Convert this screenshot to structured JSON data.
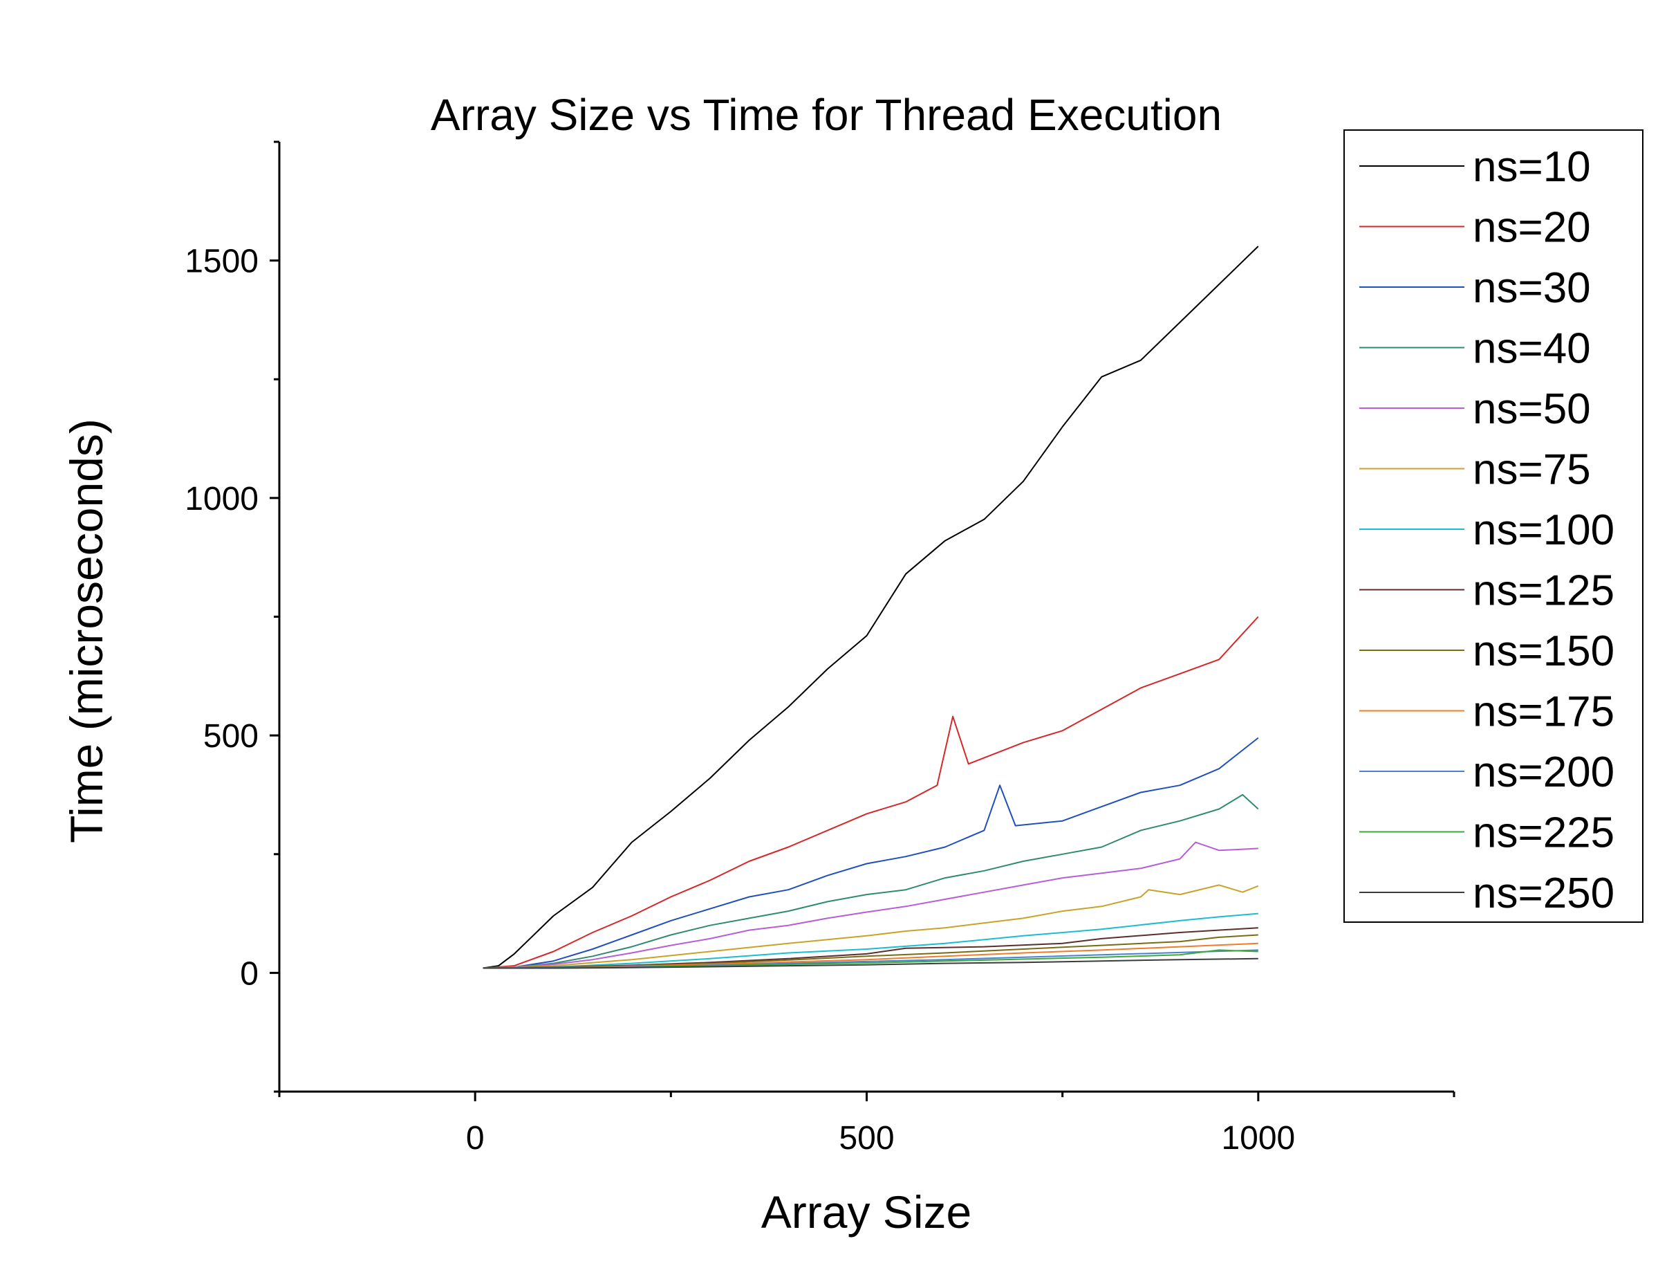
{
  "chart_data": {
    "type": "line",
    "title": "Array Size vs Time for Thread Execution",
    "xlabel": "Array Size",
    "ylabel": "Time (microseconds)",
    "xlim": [
      -250,
      1250
    ],
    "ylim": [
      -250,
      1750
    ],
    "x_ticks": [
      "0",
      "500",
      "1000"
    ],
    "y_ticks": [
      "0",
      "500",
      "1000",
      "1500"
    ],
    "legend_position": "right",
    "grid": false,
    "series": [
      {
        "name": "ns=10",
        "color": "#000000",
        "points": [
          [
            10,
            10
          ],
          [
            30,
            15
          ],
          [
            50,
            40
          ],
          [
            100,
            120
          ],
          [
            150,
            180
          ],
          [
            200,
            275
          ],
          [
            250,
            340
          ],
          [
            300,
            410
          ],
          [
            350,
            490
          ],
          [
            400,
            560
          ],
          [
            450,
            640
          ],
          [
            500,
            710
          ],
          [
            550,
            840
          ],
          [
            600,
            910
          ],
          [
            650,
            955
          ],
          [
            700,
            1035
          ],
          [
            750,
            1150
          ],
          [
            800,
            1255
          ],
          [
            850,
            1290
          ],
          [
            900,
            1370
          ],
          [
            950,
            1450
          ],
          [
            1000,
            1530
          ]
        ]
      },
      {
        "name": "ns=20",
        "color": "#d62728",
        "points": [
          [
            10,
            10
          ],
          [
            50,
            15
          ],
          [
            100,
            45
          ],
          [
            150,
            85
          ],
          [
            200,
            120
          ],
          [
            250,
            160
          ],
          [
            300,
            195
          ],
          [
            350,
            235
          ],
          [
            400,
            265
          ],
          [
            450,
            300
          ],
          [
            500,
            335
          ],
          [
            550,
            360
          ],
          [
            590,
            395
          ],
          [
            610,
            540
          ],
          [
            630,
            440
          ],
          [
            700,
            485
          ],
          [
            750,
            510
          ],
          [
            800,
            555
          ],
          [
            850,
            600
          ],
          [
            900,
            630
          ],
          [
            950,
            660
          ],
          [
            1000,
            750
          ]
        ]
      },
      {
        "name": "ns=30",
        "color": "#1f4fbf",
        "points": [
          [
            10,
            10
          ],
          [
            50,
            12
          ],
          [
            100,
            25
          ],
          [
            150,
            50
          ],
          [
            200,
            80
          ],
          [
            250,
            110
          ],
          [
            300,
            135
          ],
          [
            350,
            160
          ],
          [
            400,
            175
          ],
          [
            450,
            205
          ],
          [
            500,
            230
          ],
          [
            550,
            245
          ],
          [
            600,
            265
          ],
          [
            650,
            300
          ],
          [
            670,
            395
          ],
          [
            690,
            310
          ],
          [
            750,
            320
          ],
          [
            800,
            350
          ],
          [
            850,
            380
          ],
          [
            900,
            395
          ],
          [
            950,
            430
          ],
          [
            1000,
            495
          ]
        ]
      },
      {
        "name": "ns=40",
        "color": "#2e8b6e",
        "points": [
          [
            10,
            10
          ],
          [
            50,
            12
          ],
          [
            100,
            20
          ],
          [
            150,
            35
          ],
          [
            200,
            55
          ],
          [
            250,
            80
          ],
          [
            300,
            100
          ],
          [
            350,
            115
          ],
          [
            400,
            130
          ],
          [
            450,
            150
          ],
          [
            500,
            165
          ],
          [
            550,
            175
          ],
          [
            600,
            200
          ],
          [
            650,
            215
          ],
          [
            700,
            235
          ],
          [
            750,
            250
          ],
          [
            800,
            265
          ],
          [
            850,
            300
          ],
          [
            900,
            320
          ],
          [
            950,
            345
          ],
          [
            980,
            375
          ],
          [
            1000,
            345
          ]
        ]
      },
      {
        "name": "ns=50",
        "color": "#b55ed6",
        "points": [
          [
            10,
            10
          ],
          [
            50,
            12
          ],
          [
            100,
            18
          ],
          [
            150,
            28
          ],
          [
            200,
            42
          ],
          [
            250,
            58
          ],
          [
            300,
            72
          ],
          [
            350,
            90
          ],
          [
            400,
            100
          ],
          [
            450,
            115
          ],
          [
            500,
            128
          ],
          [
            550,
            140
          ],
          [
            600,
            155
          ],
          [
            650,
            170
          ],
          [
            700,
            185
          ],
          [
            750,
            200
          ],
          [
            800,
            210
          ],
          [
            850,
            220
          ],
          [
            900,
            240
          ],
          [
            920,
            275
          ],
          [
            950,
            258
          ],
          [
            1000,
            262
          ]
        ]
      },
      {
        "name": "ns=75",
        "color": "#c9a227",
        "points": [
          [
            10,
            10
          ],
          [
            100,
            15
          ],
          [
            200,
            28
          ],
          [
            300,
            45
          ],
          [
            400,
            62
          ],
          [
            500,
            78
          ],
          [
            550,
            88
          ],
          [
            600,
            95
          ],
          [
            650,
            105
          ],
          [
            700,
            115
          ],
          [
            750,
            130
          ],
          [
            800,
            140
          ],
          [
            850,
            160
          ],
          [
            860,
            175
          ],
          [
            900,
            165
          ],
          [
            950,
            185
          ],
          [
            980,
            170
          ],
          [
            1000,
            183
          ]
        ]
      },
      {
        "name": "ns=100",
        "color": "#17becf",
        "points": [
          [
            10,
            10
          ],
          [
            100,
            12
          ],
          [
            200,
            20
          ],
          [
            300,
            30
          ],
          [
            400,
            42
          ],
          [
            500,
            50
          ],
          [
            600,
            62
          ],
          [
            700,
            78
          ],
          [
            800,
            92
          ],
          [
            900,
            110
          ],
          [
            950,
            118
          ],
          [
            1000,
            125
          ]
        ]
      },
      {
        "name": "ns=125",
        "color": "#5a2e2e",
        "points": [
          [
            10,
            10
          ],
          [
            100,
            12
          ],
          [
            200,
            16
          ],
          [
            300,
            22
          ],
          [
            400,
            30
          ],
          [
            500,
            40
          ],
          [
            550,
            52
          ],
          [
            650,
            55
          ],
          [
            750,
            62
          ],
          [
            800,
            72
          ],
          [
            900,
            85
          ],
          [
            1000,
            95
          ]
        ]
      },
      {
        "name": "ns=150",
        "color": "#7a6a12",
        "points": [
          [
            10,
            10
          ],
          [
            100,
            11
          ],
          [
            200,
            15
          ],
          [
            300,
            20
          ],
          [
            400,
            27
          ],
          [
            500,
            35
          ],
          [
            600,
            42
          ],
          [
            700,
            50
          ],
          [
            800,
            58
          ],
          [
            900,
            66
          ],
          [
            950,
            75
          ],
          [
            1000,
            80
          ]
        ]
      },
      {
        "name": "ns=175",
        "color": "#f07c2a",
        "points": [
          [
            10,
            10
          ],
          [
            100,
            11
          ],
          [
            200,
            14
          ],
          [
            300,
            18
          ],
          [
            400,
            23
          ],
          [
            500,
            28
          ],
          [
            600,
            35
          ],
          [
            700,
            42
          ],
          [
            800,
            48
          ],
          [
            900,
            55
          ],
          [
            1000,
            62
          ]
        ]
      },
      {
        "name": "ns=200",
        "color": "#4a7fd6",
        "points": [
          [
            10,
            10
          ],
          [
            100,
            11
          ],
          [
            200,
            13
          ],
          [
            300,
            16
          ],
          [
            400,
            20
          ],
          [
            500,
            24
          ],
          [
            600,
            28
          ],
          [
            700,
            33
          ],
          [
            800,
            38
          ],
          [
            900,
            43
          ],
          [
            1000,
            48
          ]
        ]
      },
      {
        "name": "ns=225",
        "color": "#3aaa3a",
        "points": [
          [
            10,
            10
          ],
          [
            100,
            10
          ],
          [
            200,
            12
          ],
          [
            300,
            15
          ],
          [
            400,
            18
          ],
          [
            500,
            21
          ],
          [
            600,
            25
          ],
          [
            700,
            29
          ],
          [
            800,
            33
          ],
          [
            900,
            38
          ],
          [
            950,
            48
          ],
          [
            1000,
            45
          ]
        ]
      },
      {
        "name": "ns=250",
        "color": "#3c3c3c",
        "points": [
          [
            10,
            10
          ],
          [
            100,
            10
          ],
          [
            200,
            11
          ],
          [
            300,
            13
          ],
          [
            400,
            15
          ],
          [
            500,
            17
          ],
          [
            600,
            20
          ],
          [
            700,
            22
          ],
          [
            800,
            25
          ],
          [
            900,
            28
          ],
          [
            1000,
            30
          ]
        ]
      }
    ]
  }
}
